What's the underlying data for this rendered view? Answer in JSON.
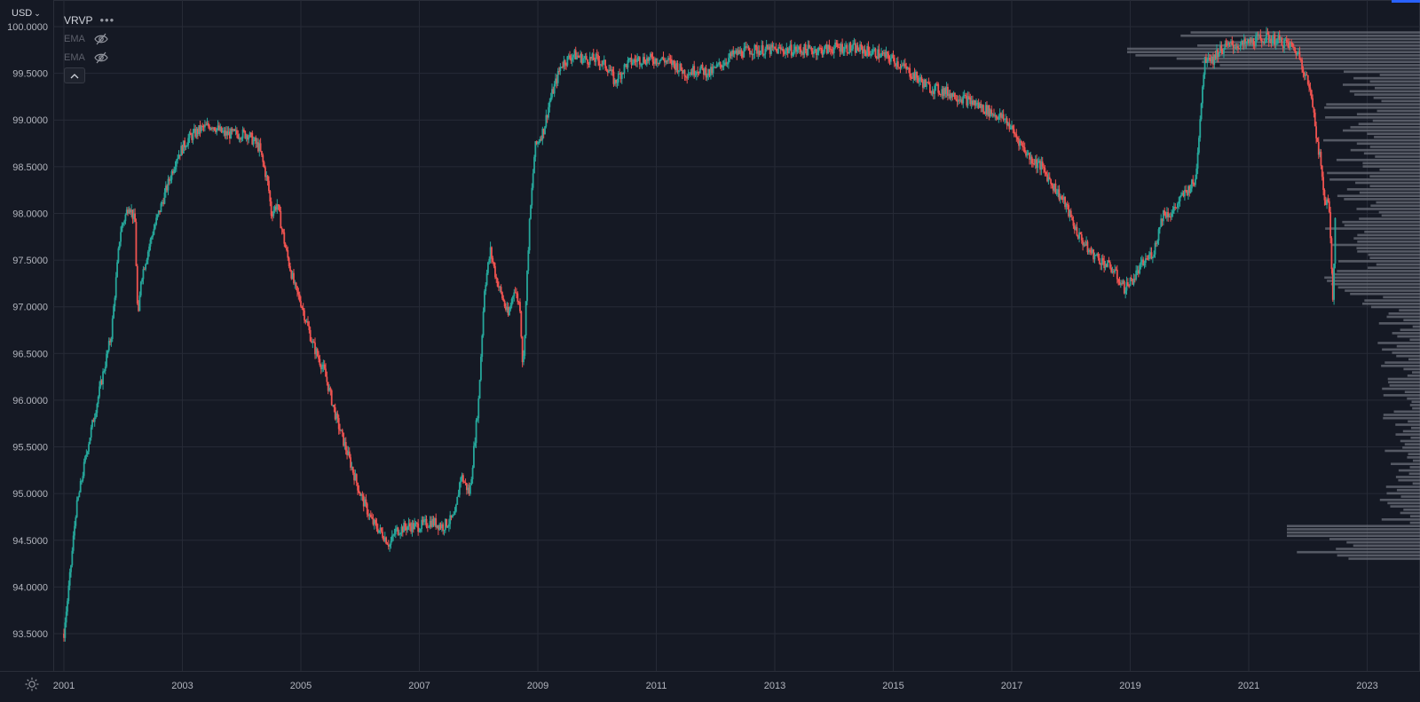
{
  "currency": {
    "label": "USD",
    "caret": "⌄"
  },
  "legend": {
    "title": "VRVP",
    "more_label": "•••",
    "ema1_label": "EMA",
    "ema2_label": "EMA"
  },
  "colors": {
    "background": "#151924",
    "grid": "#262a36",
    "up": "#26a69a",
    "down": "#ef5350",
    "profile": "#6b6f7a",
    "accent": "#2962ff"
  },
  "icons": {
    "more": "more-dots-icon",
    "ema1_visibility": "eye-slash-icon",
    "ema2_visibility": "eye-slash-icon",
    "collapse": "chevron-up-icon",
    "settings": "sun-settings-icon"
  },
  "chart_data": {
    "type": "line",
    "style": "candlestick",
    "ylim": [
      93.2,
      100.2
    ],
    "xlim": [
      2000.95,
      2023.8
    ],
    "price_axis_side": "left",
    "grid": true,
    "y_ticks": [
      "100.0000",
      "99.5000",
      "99.0000",
      "98.5000",
      "98.0000",
      "97.5000",
      "97.0000",
      "96.5000",
      "96.0000",
      "95.5000",
      "95.0000",
      "94.5000",
      "94.0000",
      "93.5000"
    ],
    "x_ticks": [
      "2001",
      "2003",
      "2005",
      "2007",
      "2009",
      "2011",
      "2013",
      "2015",
      "2017",
      "2019",
      "2021",
      "2023"
    ],
    "series": [
      {
        "x": [
          2001.0,
          2001.1,
          2001.2,
          2001.4,
          2001.6,
          2001.8,
          2001.95,
          2002.1,
          2002.2,
          2002.25,
          2002.3,
          2002.5,
          2002.7,
          2002.9,
          2003.1,
          2003.3,
          2003.5,
          2003.7,
          2003.9,
          2004.1,
          2004.3,
          2004.45,
          2004.5,
          2004.6,
          2004.75,
          2004.9,
          2005.0,
          2005.2,
          2005.4,
          2005.6,
          2005.8,
          2006.0,
          2006.2,
          2006.4,
          2006.5,
          2006.6,
          2006.8,
          2007.0,
          2007.2,
          2007.4,
          2007.6,
          2007.7,
          2007.85,
          2008.0,
          2008.1,
          2008.2,
          2008.3,
          2008.4,
          2008.5,
          2008.6,
          2008.7,
          2008.75,
          2008.85,
          2008.95,
          2009.1,
          2009.2,
          2009.4,
          2009.6,
          2009.8,
          2010.0,
          2010.2,
          2010.3,
          2010.5,
          2010.7,
          2010.9,
          2011.1,
          2011.3,
          2011.5,
          2011.7,
          2011.9,
          2012.1,
          2012.3,
          2012.6,
          2012.9,
          2013.2,
          2013.5,
          2013.8,
          2014.1,
          2014.4,
          2014.7,
          2015.0,
          2015.3,
          2015.6,
          2015.9,
          2016.1,
          2016.3,
          2016.6,
          2016.9,
          2017.1,
          2017.3,
          2017.5,
          2017.7,
          2017.9,
          2018.1,
          2018.3,
          2018.5,
          2018.7,
          2018.9,
          2019.05,
          2019.2,
          2019.4,
          2019.55,
          2019.7,
          2019.9,
          2020.1,
          2020.2,
          2020.25,
          2020.3,
          2020.4,
          2020.5,
          2020.7,
          2020.9,
          2021.1,
          2021.3,
          2021.5,
          2021.7,
          2021.85,
          2022.0,
          2022.1,
          2022.15,
          2022.2,
          2022.25,
          2022.3,
          2022.35,
          2022.42,
          2022.47
        ],
        "y": [
          93.5,
          94.1,
          94.8,
          95.5,
          96.1,
          96.7,
          97.8,
          98.1,
          97.9,
          96.8,
          97.3,
          97.8,
          98.2,
          98.6,
          98.8,
          98.9,
          98.95,
          98.85,
          98.85,
          98.85,
          98.7,
          98.3,
          98.0,
          98.1,
          97.6,
          97.2,
          97.05,
          96.6,
          96.3,
          95.8,
          95.4,
          95.0,
          94.7,
          94.55,
          94.45,
          94.6,
          94.65,
          94.65,
          94.7,
          94.65,
          94.75,
          95.2,
          95.0,
          96.0,
          97.2,
          97.6,
          97.3,
          97.1,
          96.9,
          97.2,
          97.0,
          96.3,
          97.8,
          98.7,
          98.9,
          99.2,
          99.6,
          99.7,
          99.65,
          99.65,
          99.55,
          99.4,
          99.6,
          99.65,
          99.65,
          99.65,
          99.6,
          99.5,
          99.55,
          99.5,
          99.6,
          99.7,
          99.75,
          99.75,
          99.75,
          99.75,
          99.75,
          99.78,
          99.76,
          99.72,
          99.65,
          99.5,
          99.35,
          99.3,
          99.25,
          99.2,
          99.1,
          99.0,
          98.8,
          98.6,
          98.5,
          98.3,
          98.1,
          97.8,
          97.6,
          97.5,
          97.4,
          97.2,
          97.3,
          97.45,
          97.6,
          98.0,
          98.0,
          98.2,
          98.35,
          99.2,
          99.6,
          99.7,
          99.65,
          99.75,
          99.8,
          99.8,
          99.85,
          99.88,
          99.85,
          99.8,
          99.7,
          99.4,
          99.1,
          98.8,
          98.6,
          98.3,
          98.1,
          98.2,
          97.05,
          98.2
        ]
      }
    ]
  }
}
